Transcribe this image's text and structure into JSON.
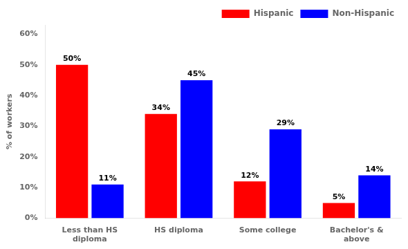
{
  "chart_data": {
    "type": "bar",
    "categories": [
      "Less than HS\ndiploma",
      "HS diploma",
      "Some college",
      "Bachelor's &\nabove"
    ],
    "series": [
      {
        "name": "Hispanic",
        "color": "#ff0000",
        "values": [
          50,
          34,
          12,
          5
        ],
        "value_labels": [
          "50%",
          "34%",
          "12%",
          "5%"
        ]
      },
      {
        "name": "Non-Hispanic",
        "color": "#0000ff",
        "values": [
          11,
          45,
          29,
          14
        ],
        "value_labels": [
          "11%",
          "45%",
          "29%",
          "14%"
        ]
      }
    ],
    "ylabel": "% of workers",
    "ylim": [
      0,
      63
    ],
    "yticks": [
      {
        "value": 0,
        "label": "0%"
      },
      {
        "value": 10,
        "label": "10%"
      },
      {
        "value": 20,
        "label": "20%"
      },
      {
        "value": 30,
        "label": "30%"
      },
      {
        "value": 40,
        "label": "40%"
      },
      {
        "value": 50,
        "label": "50%"
      },
      {
        "value": 60,
        "label": "60%"
      }
    ],
    "grid": false,
    "legend": "upper right",
    "data_labels": true
  }
}
